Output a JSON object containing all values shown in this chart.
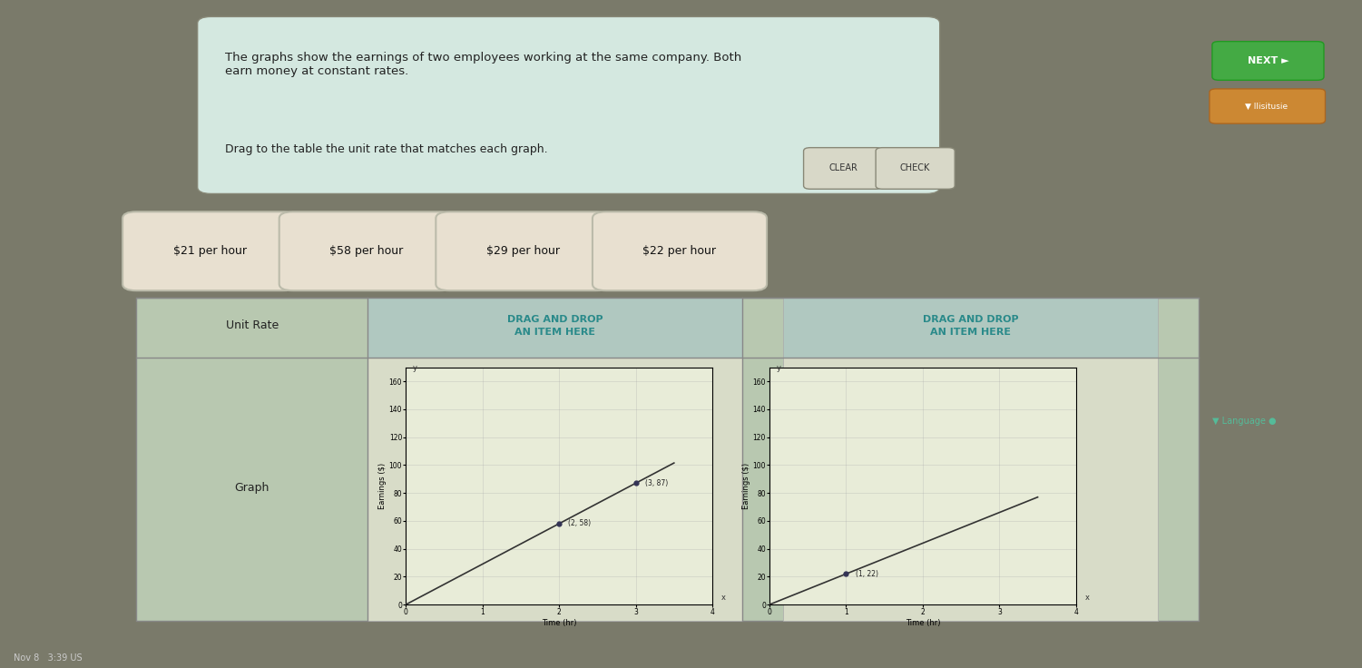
{
  "outer_bg": "#7a7a6a",
  "header_bg": "#d4e8e0",
  "header_text": "The graphs show the earnings of two employees working at the same company. Both\nearn money at constant rates.",
  "subheader_text": "Drag to the table the unit rate that matches each graph.",
  "button_clear": "CLEAR",
  "button_check": "CHECK",
  "unit_rate_boxes": [
    "$21 per hour",
    "$58 per hour",
    "$29 per hour",
    "$22 per hour"
  ],
  "table_header_unit_rate": "Unit Rate",
  "table_header_graph": "Graph",
  "drag_drop_text": "DRAG AND DROP\nAN ITEM HERE",
  "graph1": {
    "xlabel": "Time (hr)",
    "ylabel": "Earnings ($)",
    "x_data": [
      0,
      1,
      2,
      3,
      3.5
    ],
    "y_data": [
      0,
      29,
      58,
      87,
      101.5
    ],
    "points": [
      [
        2,
        58
      ],
      [
        3,
        87
      ]
    ],
    "point_labels": [
      "(2, 58)",
      "(3, 87)"
    ],
    "xlim": [
      0,
      4
    ],
    "ylim": [
      0,
      170
    ],
    "yticks": [
      0,
      20,
      40,
      60,
      80,
      100,
      120,
      140,
      160
    ],
    "xticks": [
      0,
      1,
      2,
      3,
      4
    ]
  },
  "graph2": {
    "xlabel": "Time (hr)",
    "ylabel": "Earnings ($)",
    "x_data": [
      0,
      1,
      2,
      3,
      3.5
    ],
    "y_data": [
      0,
      22,
      44,
      66,
      77
    ],
    "points": [
      [
        1,
        22
      ]
    ],
    "point_labels": [
      "(1, 22)"
    ],
    "xlim": [
      0,
      4
    ],
    "ylim": [
      0,
      170
    ],
    "yticks": [
      0,
      20,
      40,
      60,
      80,
      100,
      120,
      140,
      160
    ],
    "xticks": [
      0,
      1,
      2,
      3,
      4
    ]
  },
  "line_color": "#333333",
  "point_color": "#333355",
  "grid_color": "#aaaaaa",
  "table_bg": "#b8c8b0",
  "drag_cell_bg": "#b0c8c0",
  "drag_text_color": "#2a8a8a",
  "unit_box_bg": "#e8e0d0",
  "graph_cell_bg": "#d8dcc8",
  "graph_face_bg": "#e8ecd8",
  "next_btn_color": "#44aa44",
  "next_btn_text": "NEXT ►",
  "lang_btn_color": "#cc8833",
  "lang_btn_bg": "#cc8833"
}
